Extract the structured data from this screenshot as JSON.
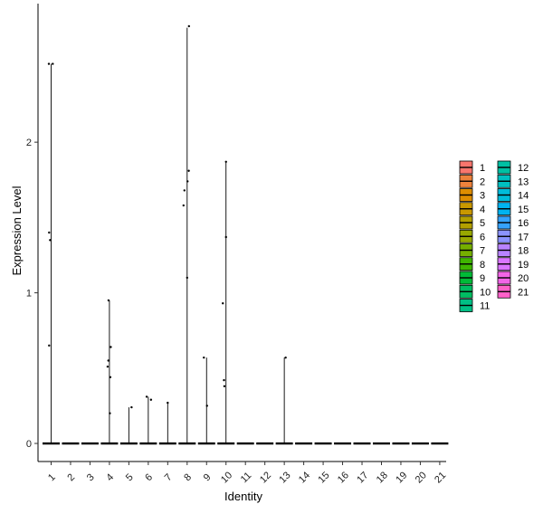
{
  "chart_data": {
    "type": "violin",
    "title": "",
    "xlabel": "Identity",
    "ylabel": "Expression Level",
    "ylim": [
      -0.12,
      2.92
    ],
    "yticks": [
      0,
      1,
      2
    ],
    "grid": false,
    "legend_position": "right",
    "categories": [
      "1",
      "2",
      "3",
      "4",
      "5",
      "6",
      "7",
      "8",
      "9",
      "10",
      "11",
      "12",
      "13",
      "14",
      "15",
      "16",
      "17",
      "18",
      "19",
      "20",
      "21"
    ],
    "colors": [
      "#F8766D",
      "#EC823C",
      "#DD8D00",
      "#C99800",
      "#B3A000",
      "#98A800",
      "#75AF00",
      "#3FB500",
      "#00BA38",
      "#00BD62",
      "#00BF85",
      "#00C0A3",
      "#00BFC0",
      "#00BBDA",
      "#00B3F0",
      "#35A2FF",
      "#8B93FF",
      "#B883FF",
      "#DA75FF",
      "#F265E7",
      "#FF61C9"
    ],
    "series": [
      {
        "category": "1",
        "max": 2.52,
        "points": [
          [
            -0.25,
            2.52
          ],
          [
            0.18,
            2.52
          ],
          [
            -0.22,
            1.4
          ],
          [
            -0.12,
            1.35
          ],
          [
            -0.22,
            0.65
          ]
        ]
      },
      {
        "category": "2",
        "max": 0,
        "points": []
      },
      {
        "category": "3",
        "max": 0,
        "points": []
      },
      {
        "category": "4",
        "max": 0.95,
        "points": [
          [
            -0.1,
            0.95
          ],
          [
            -0.12,
            0.55
          ],
          [
            -0.2,
            0.51
          ],
          [
            0.15,
            0.64
          ],
          [
            0.1,
            0.44
          ],
          [
            0.05,
            0.2
          ]
        ]
      },
      {
        "category": "5",
        "max": 0.24,
        "points": [
          [
            0.3,
            0.24
          ]
        ]
      },
      {
        "category": "6",
        "max": 0.31,
        "points": [
          [
            -0.18,
            0.31
          ],
          [
            0.3,
            0.29
          ]
        ]
      },
      {
        "category": "7",
        "max": 0.27,
        "points": [
          [
            0.0,
            0.27
          ]
        ]
      },
      {
        "category": "8",
        "max": 2.76,
        "points": [
          [
            0.2,
            2.77
          ],
          [
            -0.3,
            1.68
          ],
          [
            -0.4,
            1.58
          ],
          [
            0.05,
            1.74
          ],
          [
            0.18,
            1.81
          ],
          [
            0.0,
            1.1
          ]
        ]
      },
      {
        "category": "9",
        "max": 0.57,
        "points": [
          [
            -0.3,
            0.57
          ],
          [
            0.05,
            0.25
          ]
        ]
      },
      {
        "category": "10",
        "max": 1.87,
        "points": [
          [
            0.0,
            1.87
          ],
          [
            0.0,
            1.37
          ],
          [
            -0.35,
            0.93
          ],
          [
            -0.22,
            0.42
          ],
          [
            -0.18,
            0.38
          ]
        ]
      },
      {
        "category": "11",
        "max": 0,
        "points": []
      },
      {
        "category": "12",
        "max": 0,
        "points": []
      },
      {
        "category": "13",
        "max": 0.57,
        "points": [
          [
            0.15,
            0.57
          ]
        ]
      },
      {
        "category": "14",
        "max": 0,
        "points": []
      },
      {
        "category": "15",
        "max": 0,
        "points": []
      },
      {
        "category": "16",
        "max": 0,
        "points": []
      },
      {
        "category": "17",
        "max": 0,
        "points": []
      },
      {
        "category": "18",
        "max": 0,
        "points": []
      },
      {
        "category": "19",
        "max": 0,
        "points": []
      },
      {
        "category": "20",
        "max": 0,
        "points": []
      },
      {
        "category": "21",
        "max": 0,
        "points": []
      }
    ]
  }
}
